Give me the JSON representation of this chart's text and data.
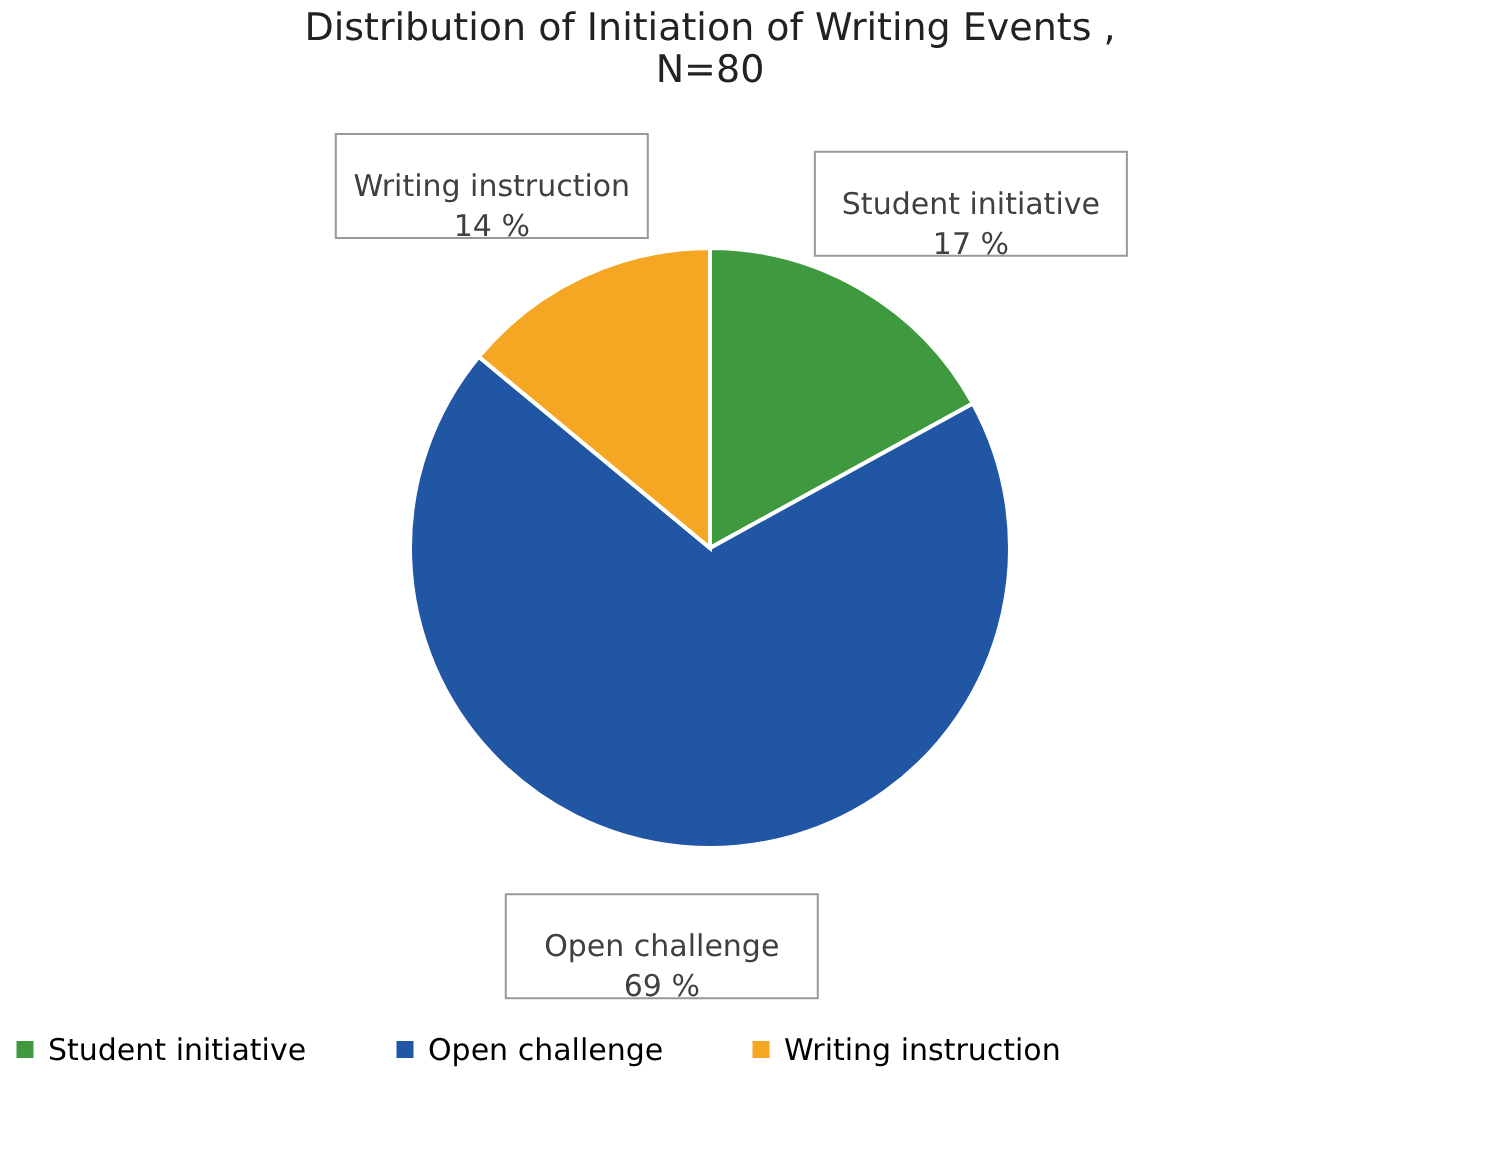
{
  "chart_data": {
    "type": "pie",
    "title": "Distribution of Initiation of Writing Events , N=80",
    "categories": [
      "Student initiative",
      "Open challenge",
      "Writing instruction"
    ],
    "values": [
      17,
      69,
      14
    ],
    "colors": [
      "#3f9a3f",
      "#2156a5",
      "#f5a623"
    ],
    "value_labels": [
      "17 %",
      "69 %",
      "14 %"
    ],
    "legend": "bottom"
  }
}
